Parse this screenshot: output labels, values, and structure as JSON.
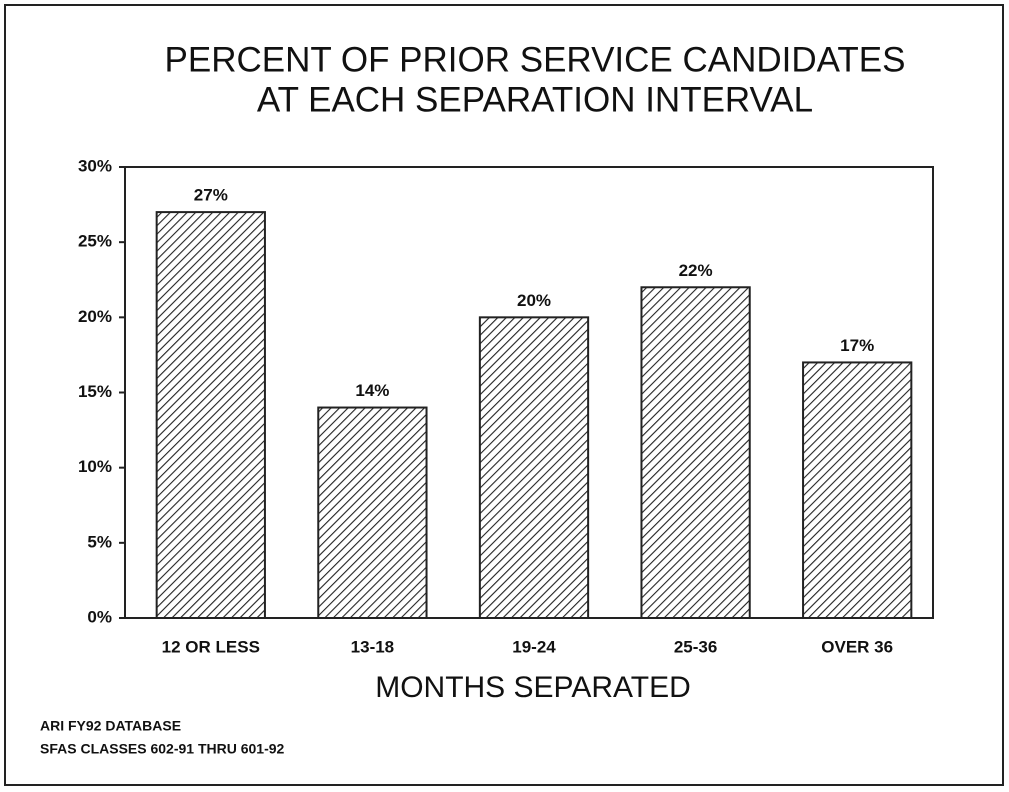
{
  "chart_data": {
    "type": "bar",
    "title": [
      "PERCENT OF PRIOR SERVICE CANDIDATES",
      "AT EACH SEPARATION INTERVAL"
    ],
    "x_label": "MONTHS SEPARATED",
    "categories": [
      "12 OR LESS",
      "13-18",
      "19-24",
      "25-36",
      "OVER 36"
    ],
    "values": [
      27,
      14,
      20,
      22,
      17
    ],
    "value_labels": [
      "27%",
      "14%",
      "20%",
      "22%",
      "17%"
    ],
    "color": "#222222",
    "ylim": [
      0,
      30
    ],
    "yticks": [
      {
        "value": 0,
        "label": "0%"
      },
      {
        "value": 5,
        "label": "5%"
      },
      {
        "value": 10,
        "label": "10%"
      },
      {
        "value": 15,
        "label": "15%"
      },
      {
        "value": 20,
        "label": "20%"
      },
      {
        "value": 25,
        "label": "25%"
      },
      {
        "value": 30,
        "label": "30%"
      }
    ],
    "notes": [
      "ARI FY92 DATABASE",
      "SFAS CLASSES 602-91 THRU 601-92"
    ]
  }
}
